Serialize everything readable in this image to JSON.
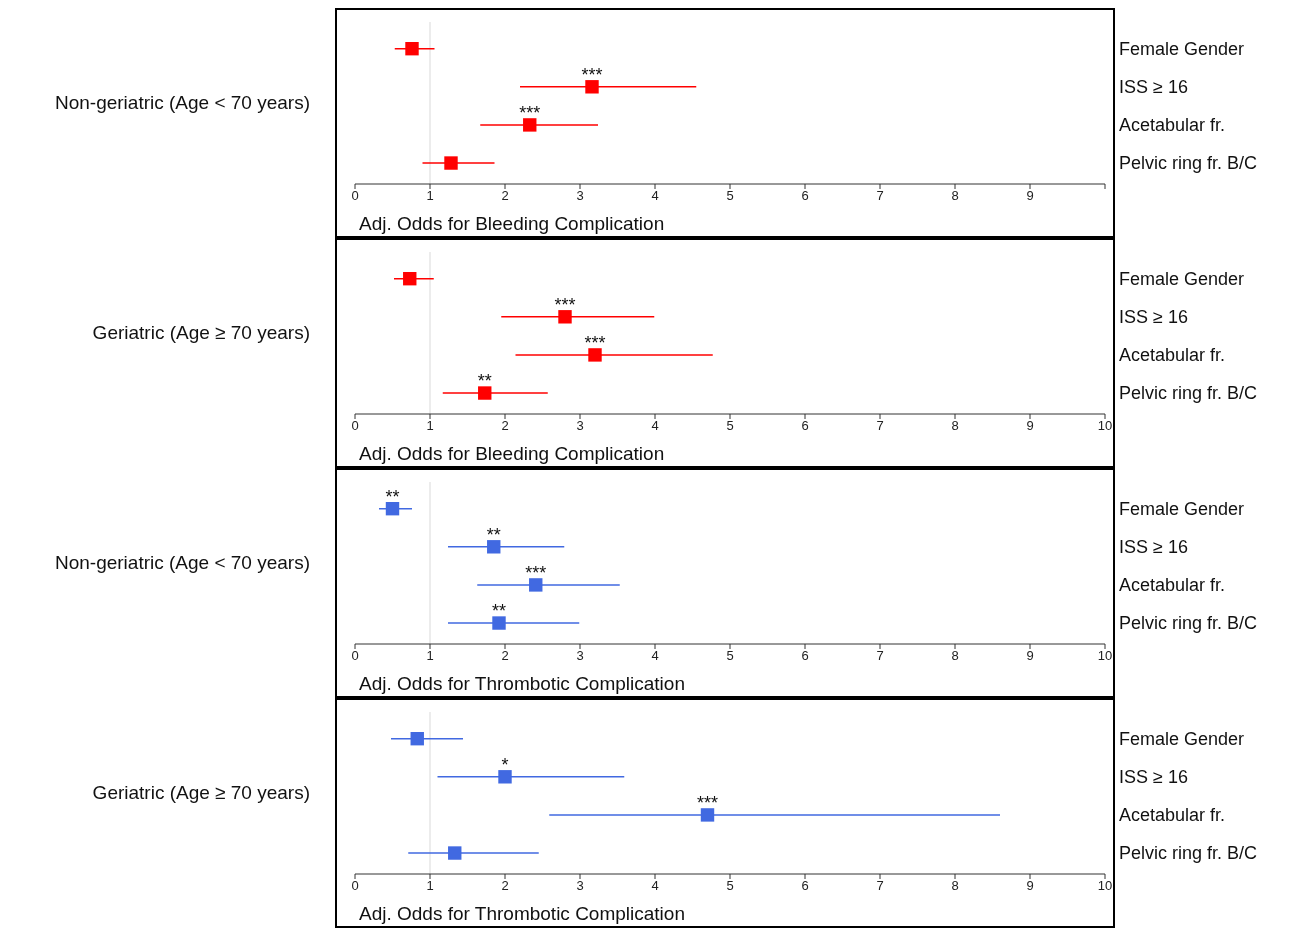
{
  "chart_data": [
    {
      "type": "scatter",
      "orientation": "horizontal",
      "ylabel": "Non-geriatric (Age < 70 years)",
      "xlabel": "Adj. Odds for Bleeding Complication",
      "categories": [
        "Female Gender",
        "ISS ≥ 16",
        "Acetabular fr.",
        "Pelvic ring fr. B/C"
      ],
      "series": [
        {
          "color": "#ff0000",
          "values": [
            0.76,
            3.16,
            2.33,
            1.28
          ],
          "errors": [
            [
              0.53,
              1.06
            ],
            [
              2.2,
              4.55
            ],
            [
              1.67,
              3.24
            ],
            [
              0.9,
              1.86
            ]
          ]
        }
      ],
      "marker": "square",
      "xlim": [
        0,
        10
      ],
      "xticks": [
        0,
        1,
        2,
        3,
        4,
        5,
        6,
        7,
        8,
        9,
        {
          "value": 10,
          "label": null
        }
      ],
      "ref_lines": [
        {
          "axis": "x",
          "value": 1,
          "color": "#d9d9d9"
        }
      ],
      "annotations": [
        {
          "text": "***",
          "x": 3.16,
          "y": "ISS ≥ 16"
        },
        {
          "text": "***",
          "x": 2.33,
          "y": "Acetabular fr."
        }
      ]
    },
    {
      "type": "scatter",
      "orientation": "horizontal",
      "ylabel": "Geriatric (Age ≥ 70 years)",
      "xlabel": "Adj. Odds for Bleeding Complication",
      "categories": [
        "Female Gender",
        "ISS ≥ 16",
        "Acetabular fr.",
        "Pelvic ring fr. B/C"
      ],
      "series": [
        {
          "color": "#ff0000",
          "values": [
            0.73,
            2.8,
            3.2,
            1.73
          ],
          "errors": [
            [
              0.52,
              1.05
            ],
            [
              1.95,
              3.99
            ],
            [
              2.14,
              4.77
            ],
            [
              1.17,
              2.57
            ]
          ]
        }
      ],
      "marker": "square",
      "xlim": [
        0,
        10
      ],
      "xticks": [
        0,
        1,
        2,
        3,
        4,
        5,
        6,
        7,
        8,
        9,
        10
      ],
      "ref_lines": [
        {
          "axis": "x",
          "value": 1,
          "color": "#d9d9d9"
        }
      ],
      "annotations": [
        {
          "text": "***",
          "x": 2.8,
          "y": "ISS ≥ 16"
        },
        {
          "text": "***",
          "x": 3.2,
          "y": "Acetabular fr."
        },
        {
          "text": "**",
          "x": 1.73,
          "y": "Pelvic ring fr. B/C"
        }
      ]
    },
    {
      "type": "scatter",
      "orientation": "horizontal",
      "ylabel": "Non-geriatric (Age < 70 years)",
      "xlabel": "Adj. Odds for Thrombotic Complication",
      "categories": [
        "Female Gender",
        "ISS ≥ 16",
        "Acetabular fr.",
        "Pelvic ring fr. B/C"
      ],
      "series": [
        {
          "color": "#4169e1",
          "values": [
            0.5,
            1.85,
            2.41,
            1.92
          ],
          "errors": [
            [
              0.32,
              0.76
            ],
            [
              1.24,
              2.79
            ],
            [
              1.63,
              3.53
            ],
            [
              1.24,
              2.99
            ]
          ]
        }
      ],
      "marker": "square",
      "xlim": [
        0,
        10
      ],
      "xticks": [
        0,
        1,
        2,
        3,
        4,
        5,
        6,
        7,
        8,
        9,
        10
      ],
      "ref_lines": [
        {
          "axis": "x",
          "value": 1,
          "color": "#d9d9d9"
        }
      ],
      "annotations": [
        {
          "text": "**",
          "x": 0.5,
          "y": "Female Gender"
        },
        {
          "text": "**",
          "x": 1.85,
          "y": "ISS ≥ 16"
        },
        {
          "text": "***",
          "x": 2.41,
          "y": "Acetabular fr."
        },
        {
          "text": "**",
          "x": 1.92,
          "y": "Pelvic ring fr. B/C"
        }
      ]
    },
    {
      "type": "scatter",
      "orientation": "horizontal",
      "ylabel": "Geriatric (Age ≥ 70 years)",
      "xlabel": "Adj. Odds for Thrombotic Complication",
      "categories": [
        "Female Gender",
        "ISS ≥ 16",
        "Acetabular fr.",
        "Pelvic ring fr. B/C"
      ],
      "series": [
        {
          "color": "#4169e1",
          "values": [
            0.83,
            2.0,
            4.7,
            1.33
          ],
          "errors": [
            [
              0.48,
              1.44
            ],
            [
              1.1,
              3.59
            ],
            [
              2.59,
              8.6
            ],
            [
              0.71,
              2.45
            ]
          ]
        }
      ],
      "marker": "square",
      "xlim": [
        0,
        10
      ],
      "xticks": [
        0,
        1,
        2,
        3,
        4,
        5,
        6,
        7,
        8,
        9,
        10
      ],
      "ref_lines": [
        {
          "axis": "x",
          "value": 1,
          "color": "#d9d9d9"
        }
      ],
      "annotations": [
        {
          "text": "*",
          "x": 2.0,
          "y": "ISS ≥ 16"
        },
        {
          "text": "***",
          "x": 4.7,
          "y": "Acetabular fr."
        }
      ]
    }
  ]
}
